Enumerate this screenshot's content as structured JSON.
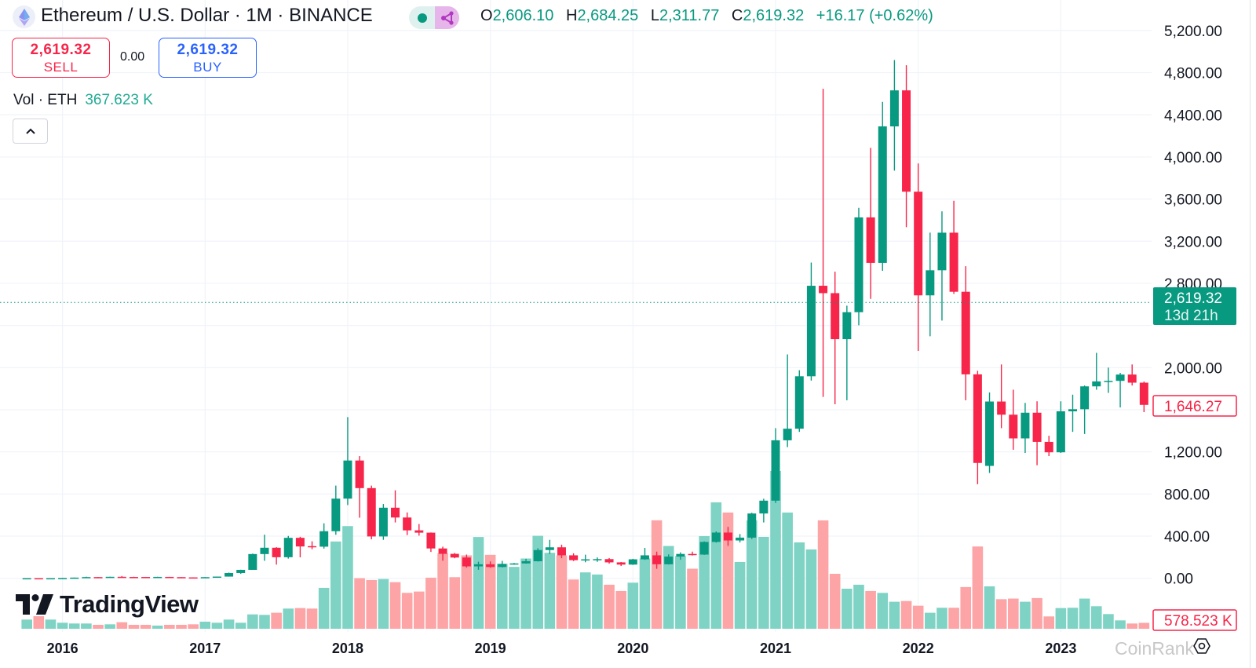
{
  "header": {
    "title": "Ethereum / U.S. Dollar · 1M · BINANCE",
    "ohlc": {
      "o_label": "O",
      "o": "2,606.10",
      "h_label": "H",
      "h": "2,684.25",
      "l_label": "L",
      "l": "2,311.77",
      "c_label": "C",
      "c": "2,619.32",
      "change": "+16.17 (+0.62%)"
    }
  },
  "trade": {
    "sell_price": "2,619.32",
    "sell_label": "SELL",
    "spread": "0.00",
    "buy_price": "2,619.32",
    "buy_label": "BUY"
  },
  "volume_legend": {
    "label": "Vol · ETH",
    "value": "367.623 K"
  },
  "icons": {
    "logo": "ethereum-icon",
    "status": "live-dot-icon",
    "share": "share-nodes-icon",
    "collapse": "chevron-up-icon",
    "settings": "settings-icon"
  },
  "watermark": {
    "brand": "TradingView",
    "source": "CoinRank"
  },
  "colors": {
    "up": "#089981",
    "down": "#f7254a",
    "vol_up": "#7fd3c5",
    "vol_down": "#fca4a6",
    "grid": "#f0f3fa"
  },
  "chart_data": {
    "type": "candlestick",
    "interval": "1M",
    "y_ticks": [
      "5,200.00",
      "4,800.00",
      "4,400.00",
      "4,000.00",
      "3,600.00",
      "3,200.00",
      "2,800.00",
      "2,000.00",
      "1,200.00",
      "800.00",
      "400.00",
      "0.00"
    ],
    "y_tick_values": [
      5200,
      4800,
      4400,
      4000,
      3600,
      3200,
      2800,
      2000,
      1200,
      800,
      400,
      0
    ],
    "ylim": [
      0,
      5200
    ],
    "x_ticks": [
      "2016",
      "2017",
      "2018",
      "2019",
      "2020",
      "2021",
      "2022",
      "2023"
    ],
    "grid": true,
    "last_price": {
      "value": 2619.32,
      "label": "2,619.32",
      "countdown": "13d 21h"
    },
    "last_close_label": {
      "value": 1646.27,
      "label": "1,646.27"
    },
    "volume_label": "578.523 K",
    "columns": [
      "month",
      "open",
      "high",
      "low",
      "close",
      "volume_k"
    ],
    "candles": [
      [
        "2015-10",
        0.68,
        1.2,
        0.4,
        0.9,
        900
      ],
      [
        "2015-11",
        0.9,
        1.04,
        0.82,
        0.87,
        1230
      ],
      [
        "2015-12",
        0.87,
        0.99,
        0.8,
        0.93,
        900
      ],
      [
        "2016-01",
        0.93,
        2.7,
        0.93,
        2.2,
        590
      ],
      [
        "2016-02",
        2.2,
        6.9,
        2.1,
        6.3,
        515
      ],
      [
        "2016-03",
        6.3,
        15,
        6.2,
        11.4,
        515
      ],
      [
        "2016-04",
        11.4,
        12.1,
        6.9,
        8.8,
        385
      ],
      [
        "2016-05",
        8.8,
        14.7,
        8.6,
        14,
        437
      ],
      [
        "2016-06",
        14,
        21.5,
        11,
        12.5,
        640
      ],
      [
        "2016-07",
        12.5,
        14.4,
        9.1,
        12.4,
        385
      ],
      [
        "2016-08",
        12.4,
        13,
        9.4,
        11.2,
        385
      ],
      [
        "2016-09",
        11.2,
        14.3,
        11.1,
        13.2,
        310
      ],
      [
        "2016-10",
        13.2,
        13.4,
        10.2,
        11,
        385
      ],
      [
        "2016-11",
        11,
        11.5,
        7.9,
        8.4,
        385
      ],
      [
        "2016-12",
        8.4,
        8.8,
        5.8,
        8,
        437
      ],
      [
        "2017-01",
        8,
        11.4,
        7.9,
        10.7,
        694
      ],
      [
        "2017-02",
        10.7,
        16.4,
        10.5,
        16,
        590
      ],
      [
        "2017-03",
        16,
        54,
        15.9,
        50,
        900
      ],
      [
        "2017-04",
        50,
        81,
        42,
        80,
        590
      ],
      [
        "2017-05",
        80,
        234,
        80,
        230,
        1410
      ],
      [
        "2017-06",
        230,
        414,
        166,
        290,
        1360
      ],
      [
        "2017-07",
        290,
        295,
        130,
        200,
        1570
      ],
      [
        "2017-08",
        200,
        402,
        187,
        384,
        1980
      ],
      [
        "2017-09",
        384,
        394,
        199,
        302,
        2030
      ],
      [
        "2017-10",
        305,
        351,
        276,
        300,
        1980
      ],
      [
        "2017-11",
        300,
        522,
        282,
        447,
        4010
      ],
      [
        "2017-12",
        447,
        880,
        413,
        756,
        8560
      ],
      [
        "2018-01",
        756,
        1530,
        695,
        1118,
        10070
      ],
      [
        "2018-02",
        1118,
        1160,
        575,
        856,
        4960
      ],
      [
        "2018-03",
        856,
        880,
        370,
        397,
        4780
      ],
      [
        "2018-04",
        397,
        705,
        365,
        670,
        4880
      ],
      [
        "2018-05",
        670,
        835,
        530,
        577,
        4570
      ],
      [
        "2018-06",
        577,
        625,
        410,
        455,
        3520
      ],
      [
        "2018-07",
        455,
        515,
        405,
        433,
        3650
      ],
      [
        "2018-08",
        433,
        435,
        250,
        283,
        5010
      ],
      [
        "2018-09",
        283,
        300,
        167,
        232,
        7400
      ],
      [
        "2018-10",
        232,
        240,
        190,
        197,
        5060
      ],
      [
        "2018-11",
        197,
        225,
        101,
        113,
        7200
      ],
      [
        "2018-12",
        113,
        157,
        81,
        133,
        9000
      ],
      [
        "2019-01",
        133,
        160,
        100,
        107,
        7250
      ],
      [
        "2019-02",
        107,
        165,
        103,
        136,
        6370
      ],
      [
        "2019-03",
        136,
        145,
        128,
        141,
        6070
      ],
      [
        "2019-04",
        141,
        185,
        139,
        162,
        6890
      ],
      [
        "2019-05",
        162,
        285,
        159,
        268,
        9120
      ],
      [
        "2019-06",
        268,
        365,
        230,
        294,
        7450
      ],
      [
        "2019-07",
        294,
        319,
        190,
        218,
        7200
      ],
      [
        "2019-08",
        218,
        237,
        164,
        172,
        4830
      ],
      [
        "2019-09",
        172,
        224,
        152,
        180,
        5530
      ],
      [
        "2019-10",
        180,
        198,
        156,
        182,
        5320
      ],
      [
        "2019-11",
        182,
        192,
        139,
        151,
        4320
      ],
      [
        "2019-12",
        151,
        154,
        117,
        130,
        3700
      ],
      [
        "2020-01",
        130,
        185,
        127,
        180,
        4520
      ],
      [
        "2020-02",
        180,
        288,
        175,
        218,
        6890
      ],
      [
        "2020-03",
        218,
        253,
        90,
        133,
        10640
      ],
      [
        "2020-04",
        133,
        227,
        131,
        206,
        8120
      ],
      [
        "2020-05",
        206,
        246,
        176,
        231,
        7140
      ],
      [
        "2020-06",
        231,
        253,
        216,
        225,
        5890
      ],
      [
        "2020-07",
        225,
        350,
        222,
        345,
        9090
      ],
      [
        "2020-08",
        345,
        445,
        339,
        434,
        12400
      ],
      [
        "2020-09",
        434,
        488,
        308,
        359,
        11400
      ],
      [
        "2020-10",
        359,
        420,
        340,
        386,
        6550
      ],
      [
        "2020-11",
        386,
        622,
        373,
        615,
        10630
      ],
      [
        "2020-12",
        615,
        755,
        530,
        737,
        9010
      ],
      [
        "2021-01",
        737,
        1425,
        715,
        1310,
        15480
      ],
      [
        "2021-02",
        1310,
        2125,
        1245,
        1420,
        11400
      ],
      [
        "2021-03",
        1420,
        1975,
        1390,
        1918,
        8470
      ],
      [
        "2021-04",
        1918,
        2997,
        1877,
        2777,
        7780
      ],
      [
        "2021-05",
        2777,
        4647,
        1722,
        2707,
        10630
      ],
      [
        "2021-06",
        2707,
        2911,
        1652,
        2270,
        5390
      ],
      [
        "2021-07",
        2270,
        2588,
        1690,
        2526,
        3930
      ],
      [
        "2021-08",
        2526,
        3517,
        2402,
        3426,
        4320
      ],
      [
        "2021-09",
        3426,
        4086,
        2653,
        2994,
        3700
      ],
      [
        "2021-10",
        2994,
        4523,
        2919,
        4290,
        3520
      ],
      [
        "2021-11",
        4290,
        4920,
        3870,
        4632,
        2650
      ],
      [
        "2021-12",
        4632,
        4870,
        3333,
        3670,
        2720
      ],
      [
        "2022-01",
        3670,
        3938,
        2159,
        2686,
        2260
      ],
      [
        "2022-02",
        2686,
        3281,
        2298,
        2924,
        1570
      ],
      [
        "2022-03",
        2924,
        3483,
        2447,
        3281,
        2060
      ],
      [
        "2022-04",
        3281,
        3584,
        2700,
        2720,
        2060
      ],
      [
        "2022-05",
        2720,
        2963,
        1690,
        1936,
        4090
      ],
      [
        "2022-06",
        1936,
        1970,
        893,
        1095,
        8070
      ],
      [
        "2022-07",
        1067,
        1764,
        1000,
        1678,
        4160
      ],
      [
        "2022-08",
        1678,
        2030,
        1425,
        1553,
        2900
      ],
      [
        "2022-09",
        1553,
        1790,
        1220,
        1328,
        2960
      ],
      [
        "2022-10",
        1328,
        1665,
        1190,
        1572,
        2650
      ],
      [
        "2022-11",
        1572,
        1680,
        1073,
        1295,
        3010
      ],
      [
        "2022-12",
        1295,
        1353,
        1160,
        1196,
        1210
      ],
      [
        "2023-01",
        1196,
        1680,
        1190,
        1585,
        2030
      ],
      [
        "2023-02",
        1585,
        1743,
        1390,
        1605,
        2060
      ],
      [
        "2023-03",
        1605,
        1830,
        1370,
        1822,
        2960
      ],
      [
        "2023-04",
        1822,
        2140,
        1790,
        1869,
        2210
      ],
      [
        "2023-05",
        1869,
        2000,
        1760,
        1874,
        1440
      ],
      [
        "2023-06",
        1874,
        1950,
        1622,
        1934,
        820
      ],
      [
        "2023-07",
        1934,
        2030,
        1830,
        1857,
        515
      ],
      [
        "2023-08",
        1857,
        1868,
        1577,
        1646.27,
        578.523
      ]
    ]
  }
}
